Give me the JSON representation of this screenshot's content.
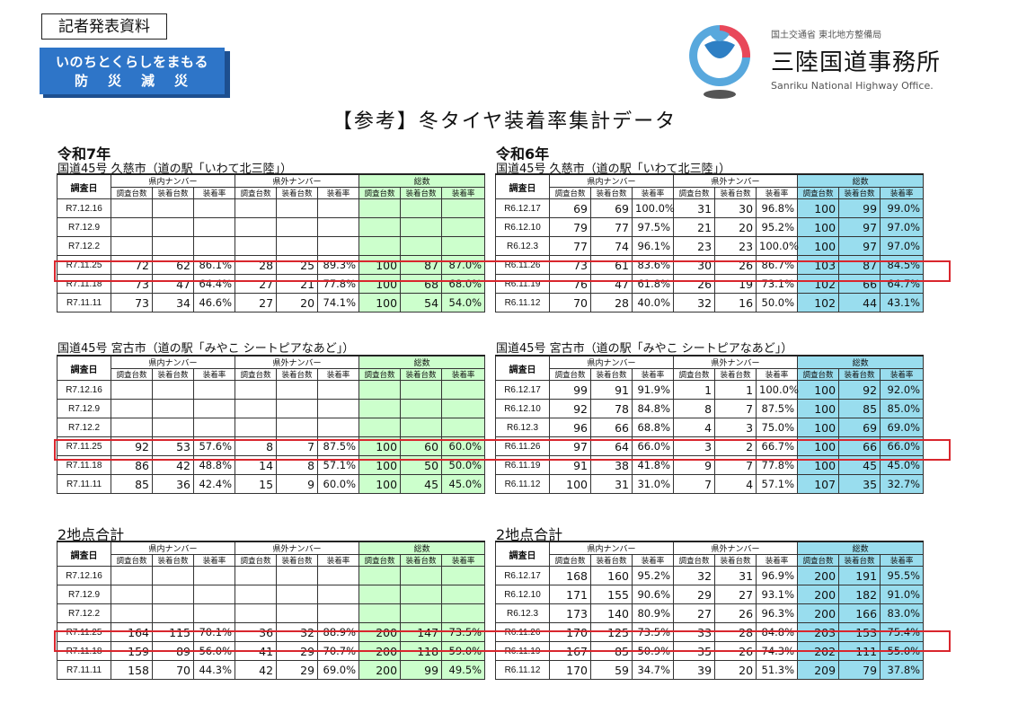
{
  "header": {
    "press_label": "記者発表資料",
    "disaster_line1": "いのちとくらしをまもる",
    "disaster_line2": "防災減災",
    "ministry": "国土交通省 東北地方整備局",
    "office_name": "三陸国道事務所",
    "office_en": "Sanriku National Highway Office.",
    "title": "【参考】冬タイヤ装着率集計データ"
  },
  "colors": {
    "green": "#ccffcc",
    "blue": "#99ddee",
    "highlight": "#d9262d",
    "badge": "#2e75c8"
  },
  "labels": {
    "date_col": "調査日",
    "in_pref": "県内ナンバー",
    "out_pref": "県外ナンバー",
    "total": "総数",
    "surveyed": "調査台数",
    "equipped": "装着台数",
    "rate": "装着率"
  },
  "blocks": [
    {
      "year": "令和7年",
      "sections": [
        {
          "title": "国道45号 久慈市（道の駅「いわて北三陸」）",
          "rows": [
            [
              "R7.12.16",
              "",
              "",
              "",
              "",
              "",
              "",
              "",
              "",
              ""
            ],
            [
              "R7.12.9",
              "",
              "",
              "",
              "",
              "",
              "",
              "",
              "",
              ""
            ],
            [
              "R7.12.2",
              "",
              "",
              "",
              "",
              "",
              "",
              "",
              "",
              ""
            ],
            [
              "R7.11.25",
              "72",
              "62",
              "86.1%",
              "28",
              "25",
              "89.3%",
              "100",
              "87",
              "87.0%"
            ],
            [
              "R7.11.18",
              "73",
              "47",
              "64.4%",
              "27",
              "21",
              "77.8%",
              "100",
              "68",
              "68.0%"
            ],
            [
              "R7.11.11",
              "73",
              "34",
              "46.6%",
              "27",
              "20",
              "74.1%",
              "100",
              "54",
              "54.0%"
            ]
          ]
        },
        {
          "title": "国道45号 宮古市（道の駅「みやこ シートピアなあど」）",
          "rows": [
            [
              "R7.12.16",
              "",
              "",
              "",
              "",
              "",
              "",
              "",
              "",
              ""
            ],
            [
              "R7.12.9",
              "",
              "",
              "",
              "",
              "",
              "",
              "",
              "",
              ""
            ],
            [
              "R7.12.2",
              "",
              "",
              "",
              "",
              "",
              "",
              "",
              "",
              ""
            ],
            [
              "R7.11.25",
              "92",
              "53",
              "57.6%",
              "8",
              "7",
              "87.5%",
              "100",
              "60",
              "60.0%"
            ],
            [
              "R7.11.18",
              "86",
              "42",
              "48.8%",
              "14",
              "8",
              "57.1%",
              "100",
              "50",
              "50.0%"
            ],
            [
              "R7.11.11",
              "85",
              "36",
              "42.4%",
              "15",
              "9",
              "60.0%",
              "100",
              "45",
              "45.0%"
            ]
          ]
        },
        {
          "title": "2地点合計",
          "rows": [
            [
              "R7.12.16",
              "",
              "",
              "",
              "",
              "",
              "",
              "",
              "",
              ""
            ],
            [
              "R7.12.9",
              "",
              "",
              "",
              "",
              "",
              "",
              "",
              "",
              ""
            ],
            [
              "R7.12.2",
              "",
              "",
              "",
              "",
              "",
              "",
              "",
              "",
              ""
            ],
            [
              "R7.11.25",
              "164",
              "115",
              "70.1%",
              "36",
              "32",
              "88.9%",
              "200",
              "147",
              "73.5%"
            ],
            [
              "R7.11.18",
              "159",
              "89",
              "56.0%",
              "41",
              "29",
              "70.7%",
              "200",
              "118",
              "59.0%"
            ],
            [
              "R7.11.11",
              "158",
              "70",
              "44.3%",
              "42",
              "29",
              "69.0%",
              "200",
              "99",
              "49.5%"
            ]
          ]
        }
      ]
    },
    {
      "year": "令和6年",
      "sections": [
        {
          "title": "国道45号 久慈市（道の駅「いわて北三陸」）",
          "rows": [
            [
              "R6.12.17",
              "69",
              "69",
              "100.0%",
              "31",
              "30",
              "96.8%",
              "100",
              "99",
              "99.0%"
            ],
            [
              "R6.12.10",
              "79",
              "77",
              "97.5%",
              "21",
              "20",
              "95.2%",
              "100",
              "97",
              "97.0%"
            ],
            [
              "R6.12.3",
              "77",
              "74",
              "96.1%",
              "23",
              "23",
              "100.0%",
              "100",
              "97",
              "97.0%"
            ],
            [
              "R6.11.26",
              "73",
              "61",
              "83.6%",
              "30",
              "26",
              "86.7%",
              "103",
              "87",
              "84.5%"
            ],
            [
              "R6.11.19",
              "76",
              "47",
              "61.8%",
              "26",
              "19",
              "73.1%",
              "102",
              "66",
              "64.7%"
            ],
            [
              "R6.11.12",
              "70",
              "28",
              "40.0%",
              "32",
              "16",
              "50.0%",
              "102",
              "44",
              "43.1%"
            ]
          ]
        },
        {
          "title": "国道45号 宮古市（道の駅「みやこ シートピアなあど」）",
          "rows": [
            [
              "R6.12.17",
              "99",
              "91",
              "91.9%",
              "1",
              "1",
              "100.0%",
              "100",
              "92",
              "92.0%"
            ],
            [
              "R6.12.10",
              "92",
              "78",
              "84.8%",
              "8",
              "7",
              "87.5%",
              "100",
              "85",
              "85.0%"
            ],
            [
              "R6.12.3",
              "96",
              "66",
              "68.8%",
              "4",
              "3",
              "75.0%",
              "100",
              "69",
              "69.0%"
            ],
            [
              "R6.11.26",
              "97",
              "64",
              "66.0%",
              "3",
              "2",
              "66.7%",
              "100",
              "66",
              "66.0%"
            ],
            [
              "R6.11.19",
              "91",
              "38",
              "41.8%",
              "9",
              "7",
              "77.8%",
              "100",
              "45",
              "45.0%"
            ],
            [
              "R6.11.12",
              "100",
              "31",
              "31.0%",
              "7",
              "4",
              "57.1%",
              "107",
              "35",
              "32.7%"
            ]
          ]
        },
        {
          "title": "2地点合計",
          "rows": [
            [
              "R6.12.17",
              "168",
              "160",
              "95.2%",
              "32",
              "31",
              "96.9%",
              "200",
              "191",
              "95.5%"
            ],
            [
              "R6.12.10",
              "171",
              "155",
              "90.6%",
              "29",
              "27",
              "93.1%",
              "200",
              "182",
              "91.0%"
            ],
            [
              "R6.12.3",
              "173",
              "140",
              "80.9%",
              "27",
              "26",
              "96.3%",
              "200",
              "166",
              "83.0%"
            ],
            [
              "R6.11.26",
              "170",
              "125",
              "73.5%",
              "33",
              "28",
              "84.8%",
              "203",
              "153",
              "75.4%"
            ],
            [
              "R6.11.19",
              "167",
              "85",
              "50.9%",
              "35",
              "26",
              "74.3%",
              "202",
              "111",
              "55.0%"
            ],
            [
              "R6.11.12",
              "170",
              "59",
              "34.7%",
              "39",
              "20",
              "51.3%",
              "209",
              "79",
              "37.8%"
            ]
          ]
        }
      ]
    }
  ]
}
